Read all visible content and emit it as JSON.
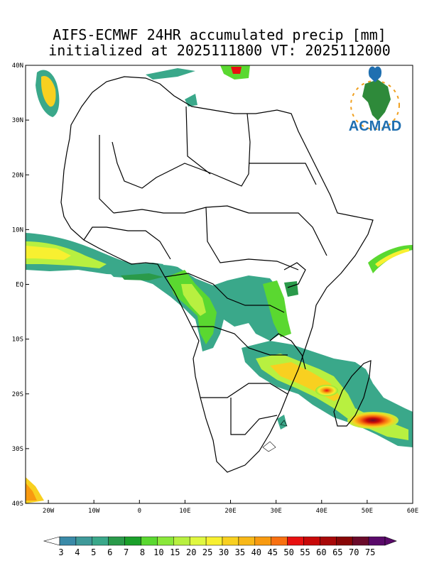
{
  "title": {
    "line1": "AIFS-ECMWF 24HR accumulated precip [mm]",
    "line2": "initialized at 2025111800 VT: 2025112000"
  },
  "logo": {
    "text": "ACMAD",
    "color": "#1f6fb0"
  },
  "axes": {
    "lon_labels": [
      "20W",
      "10W",
      "0",
      "10E",
      "20E",
      "30E",
      "40E",
      "50E",
      "60E"
    ],
    "lat_labels": [
      "40N",
      "30N",
      "20N",
      "10N",
      "EQ",
      "10S",
      "20S",
      "30S",
      "40S"
    ],
    "lon_range": [
      -25,
      60
    ],
    "lat_range": [
      -40,
      40
    ]
  },
  "colorbar": {
    "levels": [
      "3",
      "4",
      "5",
      "6",
      "7",
      "8",
      "10",
      "15",
      "20",
      "25",
      "30",
      "35",
      "40",
      "45",
      "50",
      "55",
      "60",
      "65",
      "70",
      "75"
    ],
    "colors": [
      "#3a8aa8",
      "#3f9a9a",
      "#3aa88a",
      "#2a9a4a",
      "#1aa02a",
      "#5ad830",
      "#8ae83a",
      "#b8f040",
      "#e0f840",
      "#f8f030",
      "#f8d020",
      "#f8b818",
      "#f89a10",
      "#f87010",
      "#e81010",
      "#c80808",
      "#a80808",
      "#880606",
      "#6a0a2a",
      "#5a0a6a"
    ]
  }
}
